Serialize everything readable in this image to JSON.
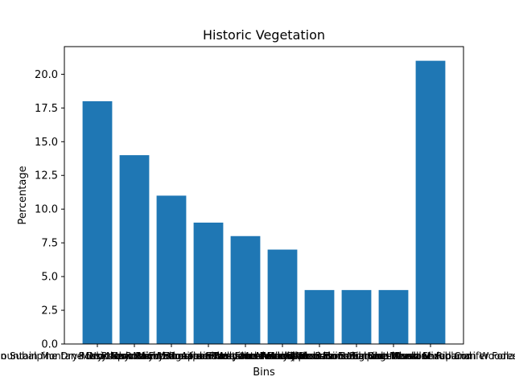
{
  "chart_data": {
    "type": "bar",
    "title": "Historic Vegetation",
    "xlabel": "Bins",
    "ylabel": "Percentage",
    "categories": [
      "Rocky Mountain Subalpine Dry-Mesic Spruce-Fir Forest and Woodland",
      "Rocky Mountain Montane Dry-Mesic Mixed Conifer Forest and Woodland",
      "Rocky Mountain Lodgepole Pine Forest",
      "Rocky Mountain Aspen Forest and Woodland",
      "Northern Rocky Mountain Montane-Foothill Deciduous Shrubland",
      "Rocky Mountain Subalpine Mesic Spruce-Fir Forest and Woodland",
      "Rocky Mountain Alpine-Montane Wet Meadow",
      "Inter-Mountain Basins Big Sagebrush Shrubland",
      "Rocky Mountain Subalpine-Montane Riparian Woodland",
      "Rocky Mountain Montane Mesic Mixed Conifer Forest and Woodland"
    ],
    "values": [
      18,
      14,
      11,
      9,
      8,
      7,
      4,
      4,
      4,
      21
    ],
    "ylim": [
      0,
      22.05
    ],
    "yticks": [
      "0.0",
      "2.5",
      "5.0",
      "7.5",
      "10.0",
      "12.5",
      "15.0",
      "17.5",
      "20.0"
    ],
    "bar_color": "#1f77b4",
    "grid": false,
    "legend": "none"
  }
}
